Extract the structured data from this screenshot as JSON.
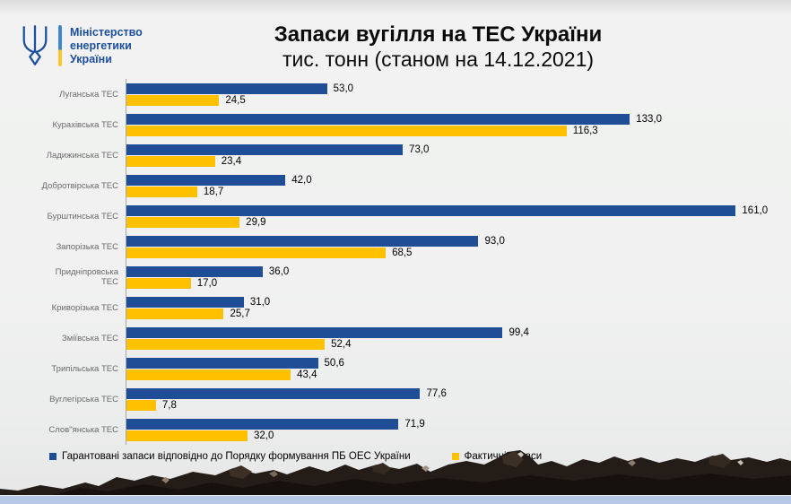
{
  "logo": {
    "ministry_lines": [
      "Міністерство",
      "енергетики",
      "України"
    ]
  },
  "header": {
    "title": "Запаси вугілля на ТЕС України",
    "subtitle": "тис. тонн (станом на 14.12.2021)"
  },
  "chart_data": {
    "type": "bar",
    "orientation": "horizontal",
    "title": "Запаси вугілля на ТЕС України",
    "subtitle": "тис. тонн (станом на 14.12.2021)",
    "unit": "тис. тонн",
    "as_of_date": "14.12.2021",
    "categories": [
      "Луганська ТЕС",
      "Курахівська ТЕС",
      "Ладижинська ТЕС",
      "Добротвірська ТЕС",
      "Бурштинська ТЕС",
      "Запорізька ТЕС",
      "Придніпровська\nТЕС",
      "Криворізька ТЕС",
      "Зміївська ТЕС",
      "Трипільська ТЕС",
      "Вуглегірська ТЕС",
      "Слов\"янська ТЕС"
    ],
    "series": [
      {
        "name": "Гарантовані запаси відповідно до Порядку формування ПБ ОЕС України",
        "color": "#1F4E96",
        "values": [
          53.0,
          133.0,
          73.0,
          42.0,
          161.0,
          93.0,
          36.0,
          31.0,
          99.4,
          50.6,
          77.6,
          71.9
        ],
        "labels": [
          "53,0",
          "133,0",
          "73,0",
          "42,0",
          "161,0",
          "93,0",
          "36,0",
          "31,0",
          "99,4",
          "50,6",
          "77,6",
          "71,9"
        ]
      },
      {
        "name": "Фактичні запаси",
        "color": "#FFC000",
        "values": [
          24.5,
          116.3,
          23.4,
          18.7,
          29.9,
          68.5,
          17.0,
          25.7,
          52.4,
          43.4,
          7.8,
          32.0
        ],
        "labels": [
          "24,5",
          "116,3",
          "23,4",
          "18,7",
          "29,9",
          "68,5",
          "17,0",
          "25,7",
          "52,4",
          "43,4",
          "7,8",
          "32,0"
        ]
      }
    ],
    "xlim": [
      0,
      170
    ],
    "grid": false,
    "legend_position": "bottom"
  }
}
